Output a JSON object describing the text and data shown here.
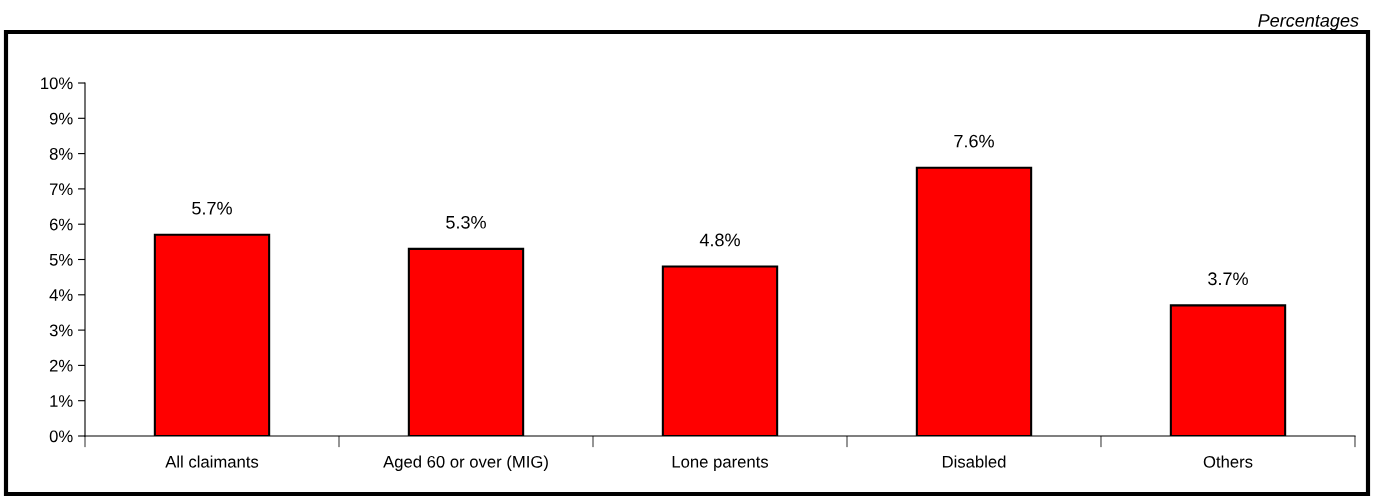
{
  "chart_data": {
    "type": "bar",
    "categories": [
      "All claimants",
      "Aged 60 or over (MIG)",
      "Lone parents",
      "Disabled",
      "Others"
    ],
    "values": [
      5.7,
      5.3,
      4.8,
      7.6,
      3.7
    ],
    "value_labels": [
      "5.7%",
      "5.3%",
      "4.8%",
      "7.6%",
      "3.7%"
    ],
    "color": "#ff0000",
    "ylim": [
      0,
      10
    ],
    "yticks": [
      {
        "value": 0,
        "label": "0%"
      },
      {
        "value": 1,
        "label": "1%"
      },
      {
        "value": 2,
        "label": "2%"
      },
      {
        "value": 3,
        "label": "3%"
      },
      {
        "value": 4,
        "label": "4%"
      },
      {
        "value": 5,
        "label": "5%"
      },
      {
        "value": 6,
        "label": "6%"
      },
      {
        "value": 7,
        "label": "7%"
      },
      {
        "value": 8,
        "label": "8%"
      },
      {
        "value": 9,
        "label": "9%"
      },
      {
        "value": 10,
        "label": "10%"
      }
    ],
    "annotations": [
      "Percentages"
    ],
    "grid": false,
    "legend": false
  }
}
